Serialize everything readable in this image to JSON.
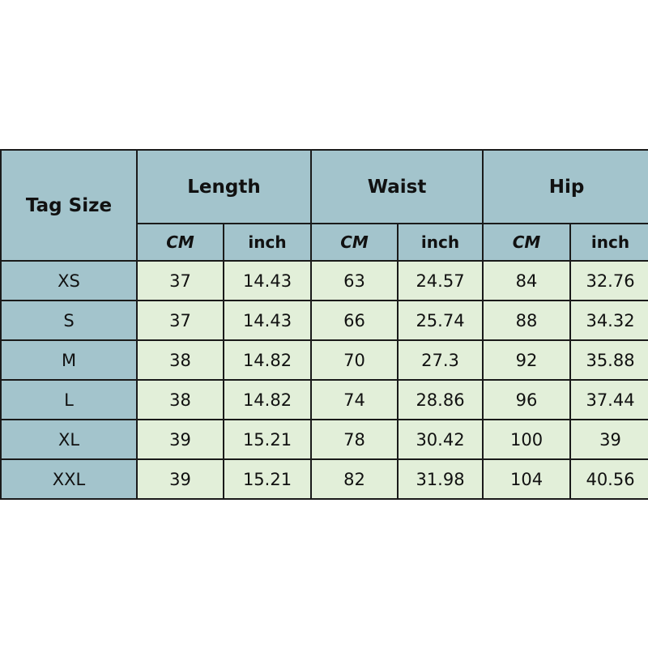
{
  "header": {
    "tag_size": "Tag Size",
    "groups": [
      "Length",
      "Waist",
      "Hip"
    ],
    "units": [
      "CM",
      "inch",
      "CM",
      "inch",
      "CM",
      "inch"
    ]
  },
  "rows": [
    [
      "XS",
      "37",
      "14.43",
      "63",
      "24.57",
      "84",
      "32.76"
    ],
    [
      "S",
      "37",
      "14.43",
      "66",
      "25.74",
      "88",
      "34.32"
    ],
    [
      "M",
      "38",
      "14.82",
      "70",
      "27.3",
      "92",
      "35.88"
    ],
    [
      "L",
      "38",
      "14.82",
      "74",
      "28.86",
      "96",
      "37.44"
    ],
    [
      "XL",
      "39",
      "15.21",
      "78",
      "30.42",
      "100",
      "39"
    ],
    [
      "XXL",
      "39",
      "15.21",
      "82",
      "31.98",
      "104",
      "40.56"
    ]
  ],
  "colors": {
    "header": "#a3c4cc",
    "cell": "#e2efd9",
    "border": "#1a1a1a"
  }
}
